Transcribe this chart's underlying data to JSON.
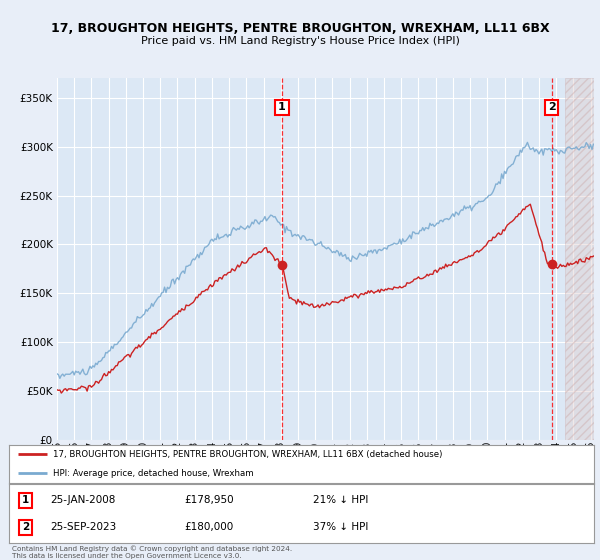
{
  "title": "17, BROUGHTON HEIGHTS, PENTRE BROUGHTON, WREXHAM, LL11 6BX",
  "subtitle": "Price paid vs. HM Land Registry's House Price Index (HPI)",
  "legend_line1": "17, BROUGHTON HEIGHTS, PENTRE BROUGHTON, WREXHAM, LL11 6BX (detached house)",
  "legend_line2": "HPI: Average price, detached house, Wrexham",
  "marker1_date": "25-JAN-2008",
  "marker1_price": 178950,
  "marker1_label": "21% ↓ HPI",
  "marker2_date": "25-SEP-2023",
  "marker2_price": 180000,
  "marker2_label": "37% ↓ HPI",
  "footnote": "Contains HM Land Registry data © Crown copyright and database right 2024.\nThis data is licensed under the Open Government Licence v3.0.",
  "background_color": "#e8eef8",
  "plot_background": "#dce8f5",
  "hpi_color": "#7aaad0",
  "price_color": "#cc2222",
  "grid_color": "#ffffff",
  "ylim": [
    0,
    370000
  ],
  "yticks": [
    0,
    50000,
    100000,
    150000,
    200000,
    250000,
    300000,
    350000
  ],
  "hatch_start": 2024.5,
  "xlim_start": 1995,
  "xlim_end": 2026.2,
  "m1_x": 2008.07,
  "m1_y": 178950,
  "m2_x": 2023.75,
  "m2_y": 180000
}
